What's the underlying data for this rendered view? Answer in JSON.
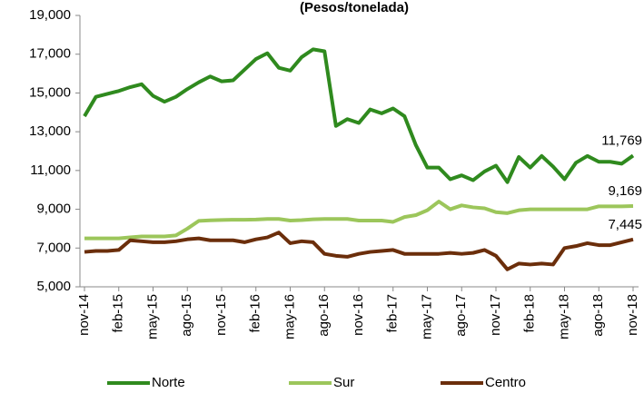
{
  "chart_data": {
    "type": "line",
    "title": "(Pesos/tonelada)",
    "categories": [
      "nov-14",
      null,
      null,
      "feb-15",
      null,
      null,
      "may-15",
      null,
      null,
      "ago-15",
      null,
      null,
      "nov-15",
      null,
      null,
      "feb-16",
      null,
      null,
      "may-16",
      null,
      null,
      "ago-16",
      null,
      null,
      "nov-16",
      null,
      null,
      "feb-17",
      null,
      null,
      "may-17",
      null,
      null,
      "ago-17",
      null,
      null,
      "nov-17",
      null,
      null,
      "feb-18",
      null,
      null,
      "may-18",
      null,
      null,
      "ago-18",
      null,
      null,
      "nov-18"
    ],
    "series": [
      {
        "name": "Norte",
        "color": "#2f8a1e",
        "values": [
          13800,
          14800,
          14950,
          15100,
          15300,
          15450,
          14850,
          14550,
          14800,
          15200,
          15550,
          15850,
          15600,
          15650,
          16200,
          16750,
          17050,
          16300,
          16150,
          16850,
          17250,
          17150,
          13300,
          13650,
          13450,
          14150,
          13950,
          14200,
          13800,
          12300,
          11150,
          11150,
          10550,
          10750,
          10500,
          10950,
          11250,
          10400,
          11700,
          11150,
          11750,
          11200,
          10550,
          11400,
          11750,
          11450,
          11450,
          11350,
          11769
        ],
        "value_labels": [
          null,
          null,
          null,
          null,
          null,
          null,
          null,
          null,
          null,
          null,
          null,
          null,
          null,
          null,
          null,
          null,
          null,
          null,
          null,
          null,
          null,
          null,
          null,
          null,
          null,
          null,
          null,
          null,
          null,
          null,
          null,
          null,
          null,
          null,
          null,
          null,
          null,
          null,
          null,
          null,
          null,
          null,
          null,
          null,
          null,
          null,
          null,
          null,
          "11,769"
        ]
      },
      {
        "name": "Sur",
        "color": "#9cc65b",
        "values": [
          7500,
          7500,
          7500,
          7500,
          7550,
          7600,
          7600,
          7600,
          7650,
          8000,
          8400,
          8430,
          8450,
          8460,
          8460,
          8470,
          8500,
          8500,
          8420,
          8440,
          8480,
          8500,
          8500,
          8500,
          8420,
          8420,
          8420,
          8350,
          8600,
          8700,
          8950,
          9400,
          9000,
          9200,
          9100,
          9050,
          8850,
          8800,
          8950,
          9000,
          9000,
          9000,
          9000,
          9000,
          9000,
          9150,
          9150,
          9150,
          9169
        ],
        "value_labels": [
          null,
          null,
          null,
          null,
          null,
          null,
          null,
          null,
          null,
          null,
          null,
          null,
          null,
          null,
          null,
          null,
          null,
          null,
          null,
          null,
          null,
          null,
          null,
          null,
          null,
          null,
          null,
          null,
          null,
          null,
          null,
          null,
          null,
          null,
          null,
          null,
          null,
          null,
          null,
          null,
          null,
          null,
          null,
          null,
          null,
          null,
          null,
          null,
          "9,169"
        ]
      },
      {
        "name": "Centro",
        "color": "#6b2e0b",
        "values": [
          6800,
          6850,
          6850,
          6900,
          7400,
          7350,
          7300,
          7300,
          7350,
          7450,
          7500,
          7400,
          7400,
          7400,
          7300,
          7450,
          7550,
          7800,
          7250,
          7350,
          7300,
          6700,
          6600,
          6550,
          6700,
          6800,
          6850,
          6900,
          6700,
          6700,
          6700,
          6700,
          6750,
          6700,
          6750,
          6900,
          6600,
          5900,
          6200,
          6150,
          6200,
          6150,
          7000,
          7100,
          7250,
          7150,
          7150,
          7300,
          7445
        ],
        "value_labels": [
          null,
          null,
          null,
          null,
          null,
          null,
          null,
          null,
          null,
          null,
          null,
          null,
          null,
          null,
          null,
          null,
          null,
          null,
          null,
          null,
          null,
          null,
          null,
          null,
          null,
          null,
          null,
          null,
          null,
          null,
          null,
          null,
          null,
          null,
          null,
          null,
          null,
          null,
          null,
          null,
          null,
          null,
          null,
          null,
          null,
          null,
          null,
          null,
          "7,445"
        ]
      }
    ],
    "ylim": [
      5000,
      19000
    ],
    "yticks": [
      {
        "value": 5000,
        "label": "5,000"
      },
      {
        "value": 7000,
        "label": "7,000"
      },
      {
        "value": 9000,
        "label": "9,000"
      },
      {
        "value": 11000,
        "label": "11,000"
      },
      {
        "value": 13000,
        "label": "13,000"
      },
      {
        "value": 15000,
        "label": "15,000"
      },
      {
        "value": 17000,
        "label": "17,000"
      },
      {
        "value": 19000,
        "label": "19,000"
      }
    ],
    "grid": false,
    "legend": "bottom"
  }
}
